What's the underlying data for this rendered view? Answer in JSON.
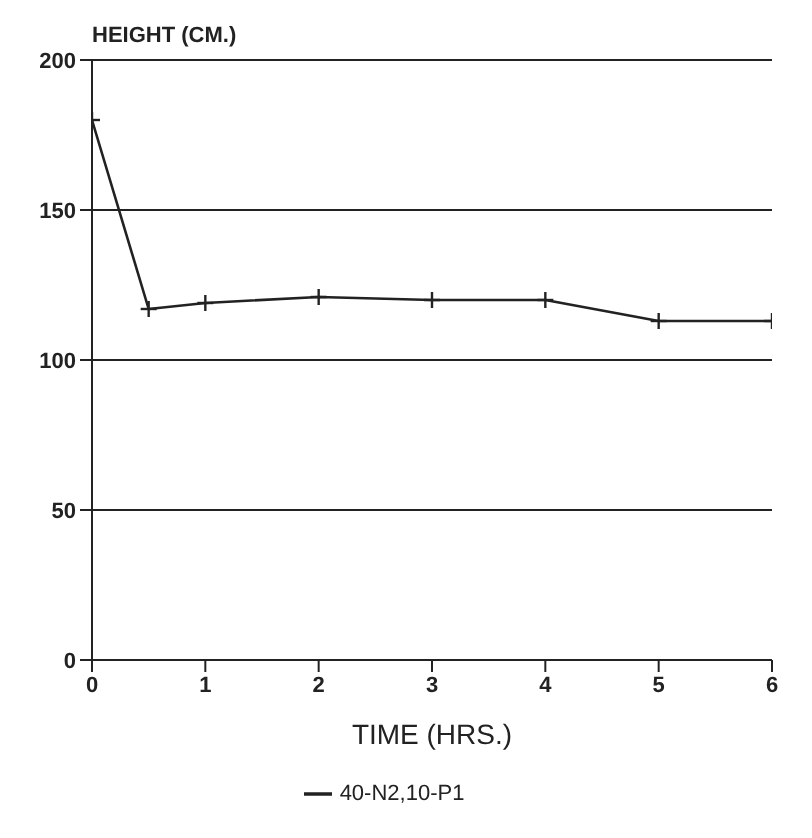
{
  "chart_data": {
    "type": "line",
    "ylabel": "HEIGHT (CM.)",
    "xlabel": "TIME (HRS.)",
    "x": [
      0,
      0.5,
      1,
      2,
      3,
      4,
      5,
      6
    ],
    "series": [
      {
        "name": "40-N2,10-P1",
        "color": "#222222",
        "values": [
          180,
          117,
          119,
          121,
          120,
          120,
          113,
          113
        ]
      }
    ],
    "xlim": [
      0,
      6
    ],
    "xticks": [
      0,
      1,
      2,
      3,
      4,
      5,
      6
    ],
    "ylim": [
      0,
      200
    ],
    "yticks": [
      0,
      50,
      100,
      150,
      200
    ],
    "grid": "y",
    "legend": "bottom",
    "marker": "cross",
    "line_style": "solid"
  }
}
